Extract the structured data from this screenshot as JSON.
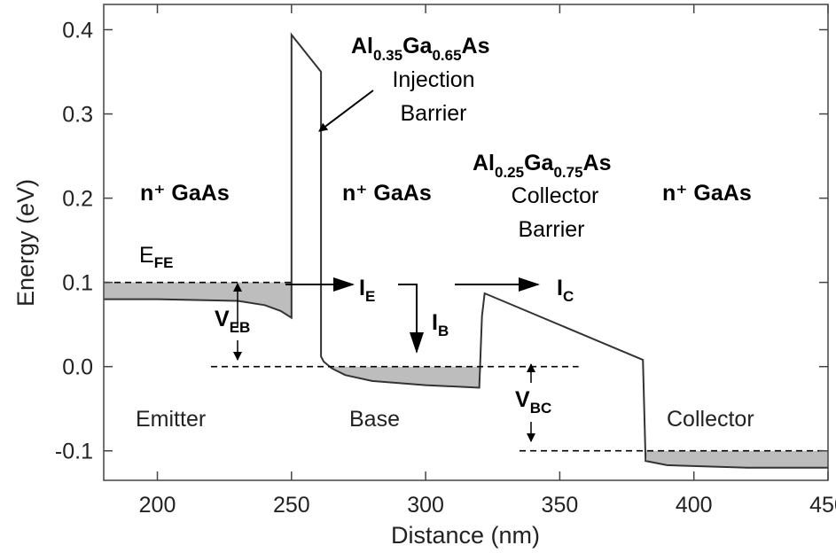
{
  "chart_data": {
    "type": "line",
    "title": "",
    "xlabel": "Distance (nm)",
    "ylabel": "Energy (eV)",
    "xlim": [
      180,
      450
    ],
    "ylim": [
      -0.135,
      0.43
    ],
    "x_ticks": [
      200,
      250,
      300,
      350,
      400,
      450
    ],
    "y_ticks": [
      0.4,
      0.3,
      0.2,
      0.1,
      0.0,
      -0.1
    ],
    "x_tick_labels": [
      "200",
      "250",
      "300",
      "350",
      "400",
      "450"
    ],
    "y_tick_labels": [
      "0.4",
      "0.3",
      "0.2",
      "0.1",
      "0.0",
      "-0.1"
    ],
    "series": [
      {
        "x": [
          180,
          200,
          230,
          240,
          246,
          250,
          250,
          261,
          261,
          262,
          265,
          270,
          280,
          300,
          320,
          321,
          322,
          381,
          382,
          390,
          420,
          450
        ],
        "y": [
          0.08,
          0.08,
          0.078,
          0.073,
          0.066,
          0.058,
          0.394,
          0.35,
          0.012,
          0.006,
          -0.002,
          -0.01,
          -0.017,
          -0.022,
          -0.025,
          0.06,
          0.087,
          0.008,
          -0.112,
          -0.117,
          -0.12,
          -0.12
        ]
      }
    ],
    "fermi_levels": [
      {
        "x": [
          180,
          250
        ],
        "y": 0.1
      },
      {
        "x": [
          220,
          357
        ],
        "y": 0.0
      },
      {
        "x": [
          335,
          450
        ],
        "y": -0.1
      }
    ],
    "regions": [
      {
        "label_main": "n⁺ GaAs",
        "label_bottom": "Emitter"
      },
      {
        "label_main": "n⁺ GaAs",
        "label_bottom": "Base"
      },
      {
        "label_main": "n⁺ GaAs",
        "label_bottom": "Collector"
      }
    ],
    "barriers": [
      {
        "formula": [
          "Al",
          "0.35",
          "Ga",
          "0.65",
          "As"
        ],
        "lines": [
          "Injection",
          "Barrier"
        ]
      },
      {
        "formula": [
          "Al",
          "0.25",
          "Ga",
          "0.75",
          "As"
        ],
        "lines": [
          "Collector",
          "Barrier"
        ]
      }
    ],
    "annotations": {
      "efe": {
        "main": "E",
        "sub": "FE"
      },
      "veb": {
        "main": "V",
        "sub": "EB"
      },
      "vbc": {
        "main": "V",
        "sub": "BC"
      },
      "ie": {
        "main": "I",
        "sub": "E"
      },
      "ib": {
        "main": "I",
        "sub": "B"
      },
      "ic": {
        "main": "I",
        "sub": "C"
      }
    }
  }
}
